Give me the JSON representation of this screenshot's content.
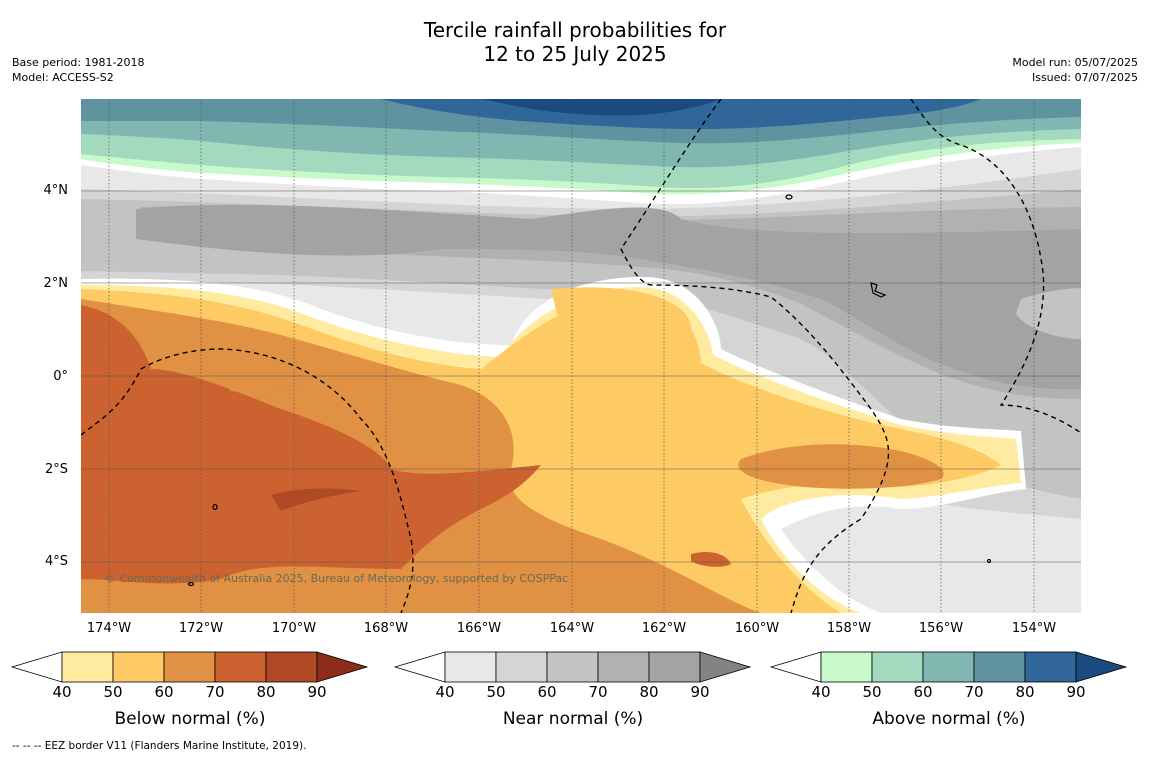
{
  "title": {
    "line1": "Tercile rainfall probabilities for",
    "line2": "12 to 25 July 2025"
  },
  "meta_left": {
    "base_period": "Base period: 1981-2018",
    "model": "Model: ACCESS-S2"
  },
  "meta_right": {
    "model_run": "Model run: 05/07/2025",
    "issued": "Issued: 07/07/2025"
  },
  "map": {
    "lat_labels": [
      "4°N",
      "2°N",
      "0°",
      "2°S",
      "4°S"
    ],
    "lon_labels": [
      "174°W",
      "172°W",
      "170°W",
      "168°W",
      "166°W",
      "164°W",
      "162°W",
      "160°W",
      "158°W",
      "156°W",
      "154°W"
    ],
    "copyright": "© Commonwealth of Australia 2025, Bureau of Meteorology, supported by COSPPac"
  },
  "colorbars": [
    {
      "label": "Below normal (%)",
      "ticks": [
        "40",
        "50",
        "60",
        "70",
        "80",
        "90"
      ],
      "colors": [
        "#ffffff",
        "#ffeba0",
        "#fdca63",
        "#e09144",
        "#cc6230",
        "#b04a26",
        "#8e2c1c"
      ]
    },
    {
      "label": "Near normal (%)",
      "ticks": [
        "40",
        "50",
        "60",
        "70",
        "80",
        "90"
      ],
      "colors": [
        "#ffffff",
        "#e8e8e8",
        "#d5d5d5",
        "#c3c3c3",
        "#b1b1b1",
        "#a3a3a3",
        "#838383"
      ]
    },
    {
      "label": "Above normal (%)",
      "ticks": [
        "40",
        "50",
        "60",
        "70",
        "80",
        "90"
      ],
      "colors": [
        "#ffffff",
        "#c8f9ca",
        "#a2d9bf",
        "#80b7b1",
        "#5f93a0",
        "#306699",
        "#1a4a7e"
      ]
    }
  ],
  "footnote": "--  --  -- EEZ border V11 (Flanders Marine Institute, 2019)."
}
